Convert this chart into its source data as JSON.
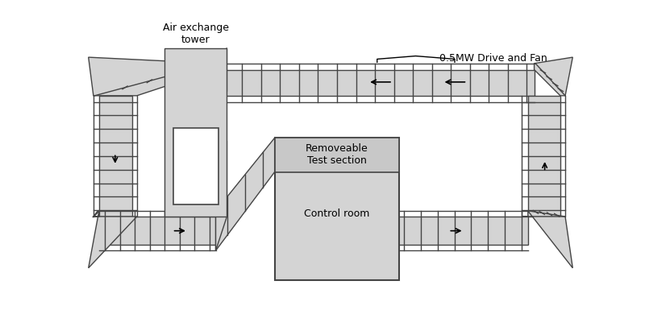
{
  "fig_width": 8.0,
  "fig_height": 4.0,
  "bg_color": "#ffffff",
  "fill": "#d4d4d4",
  "edge": "#444444",
  "lw": 1.0,
  "label_air_exchange": "Air exchange\ntower",
  "label_fan": "0.5MW Drive and Fan",
  "label_test": "Removeable\nTest section",
  "label_control": "Control room"
}
